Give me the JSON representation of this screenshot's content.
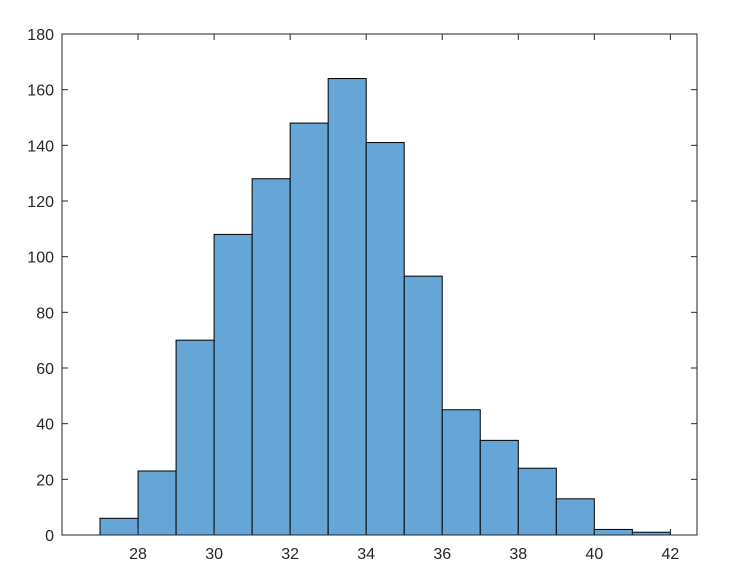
{
  "chart_data": {
    "type": "bar",
    "subtype": "histogram",
    "bin_edges": [
      27,
      28,
      29,
      30,
      31,
      32,
      33,
      34,
      35,
      36,
      37,
      38,
      39,
      40,
      41,
      42
    ],
    "values": [
      6,
      23,
      70,
      108,
      128,
      148,
      164,
      141,
      93,
      45,
      34,
      24,
      13,
      2,
      1
    ],
    "xlim": [
      26,
      42.7
    ],
    "ylim": [
      0,
      180
    ],
    "x_ticks": [
      "28",
      "30",
      "32",
      "34",
      "36",
      "38",
      "40",
      "42"
    ],
    "y_ticks": [
      "0",
      "20",
      "40",
      "60",
      "80",
      "100",
      "120",
      "140",
      "160",
      "180"
    ],
    "grid": false,
    "bar_color": "#66a6d6",
    "edge_color": "#000000"
  }
}
